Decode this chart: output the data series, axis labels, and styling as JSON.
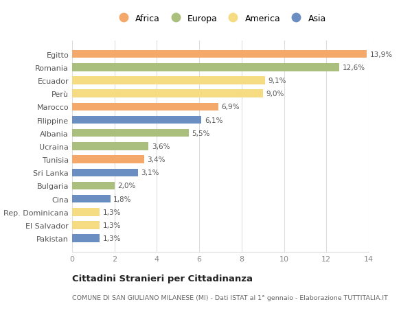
{
  "countries": [
    "Egitto",
    "Romania",
    "Ecuador",
    "Perù",
    "Marocco",
    "Filippine",
    "Albania",
    "Ucraina",
    "Tunisia",
    "Sri Lanka",
    "Bulgaria",
    "Cina",
    "Rep. Dominicana",
    "El Salvador",
    "Pakistan"
  ],
  "values": [
    13.9,
    12.6,
    9.1,
    9.0,
    6.9,
    6.1,
    5.5,
    3.6,
    3.4,
    3.1,
    2.0,
    1.8,
    1.3,
    1.3,
    1.3
  ],
  "labels": [
    "13,9%",
    "12,6%",
    "9,1%",
    "9,0%",
    "6,9%",
    "6,1%",
    "5,5%",
    "3,6%",
    "3,4%",
    "3,1%",
    "2,0%",
    "1,8%",
    "1,3%",
    "1,3%",
    "1,3%"
  ],
  "continents": [
    "Africa",
    "Europa",
    "America",
    "America",
    "Africa",
    "Asia",
    "Europa",
    "Europa",
    "Africa",
    "Asia",
    "Europa",
    "Asia",
    "America",
    "America",
    "Asia"
  ],
  "colors": {
    "Africa": "#F4A96B",
    "Europa": "#AABF7E",
    "America": "#F5DC82",
    "Asia": "#6B8EC2"
  },
  "legend_order": [
    "Africa",
    "Europa",
    "America",
    "Asia"
  ],
  "title": "Cittadini Stranieri per Cittadinanza",
  "subtitle": "COMUNE DI SAN GIULIANO MILANESE (MI) - Dati ISTAT al 1° gennaio - Elaborazione TUTTITALIA.IT",
  "xlim": [
    0,
    14
  ],
  "xticks": [
    0,
    2,
    4,
    6,
    8,
    10,
    12,
    14
  ],
  "bg_color": "#FFFFFF",
  "grid_color": "#DDDDDD",
  "bar_height": 0.6
}
